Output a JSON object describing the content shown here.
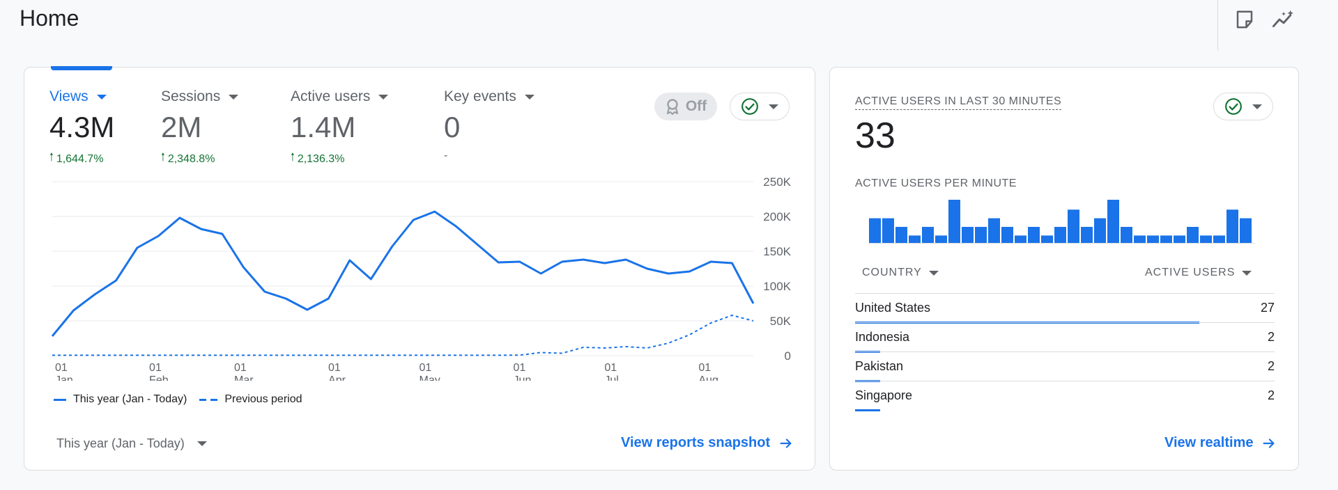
{
  "page": {
    "title": "Home"
  },
  "top_actions": [
    {
      "icon": "note-icon"
    },
    {
      "icon": "insights-sparkline-icon"
    }
  ],
  "main_card": {
    "metrics": [
      {
        "label": "Views",
        "value": "4.3M",
        "change": "1,644.7%",
        "direction": "up",
        "active": true
      },
      {
        "label": "Sessions",
        "value": "2M",
        "change": "2,348.8%",
        "direction": "up",
        "active": false
      },
      {
        "label": "Active users",
        "value": "1.4M",
        "change": "2,136.3%",
        "direction": "up",
        "active": false
      },
      {
        "label": "Key events",
        "value": "0",
        "change": "-",
        "direction": "none",
        "active": false
      }
    ],
    "toggle": {
      "label": "Off",
      "icon": "award-icon"
    },
    "status_icon": "check-circle-icon",
    "legend": {
      "current": "This year (Jan - Today)",
      "previous": "Previous period"
    },
    "date_range": "This year (Jan - Today)",
    "link_label": "View reports snapshot"
  },
  "chart_data": {
    "type": "line",
    "title": "",
    "xlabel": "",
    "ylabel": "",
    "ylim": [
      0,
      250000
    ],
    "y_ticks": [
      "250K",
      "200K",
      "150K",
      "100K",
      "50K",
      "0"
    ],
    "y_tick_values": [
      250000,
      200000,
      150000,
      100000,
      50000,
      0
    ],
    "x_ticks": [
      {
        "day": "01",
        "month": "Jan",
        "week": 0
      },
      {
        "day": "01",
        "month": "Feb",
        "week": 4.43
      },
      {
        "day": "01",
        "month": "Mar",
        "week": 8.43
      },
      {
        "day": "01",
        "month": "Apr",
        "week": 12.86
      },
      {
        "day": "01",
        "month": "May",
        "week": 17.14
      },
      {
        "day": "01",
        "month": "Jun",
        "week": 21.57
      },
      {
        "day": "01",
        "month": "Jul",
        "week": 25.86
      },
      {
        "day": "01",
        "month": "Aug",
        "week": 30.29
      }
    ],
    "grid": true,
    "legend_position": "bottom-left",
    "series": [
      {
        "name": "This year (Jan - Today)",
        "style": "solid",
        "color": "#1a73e8",
        "values": [
          28000,
          65000,
          88000,
          108000,
          155000,
          172000,
          198000,
          182000,
          175000,
          127000,
          92000,
          82000,
          66000,
          82000,
          137000,
          110000,
          157000,
          195000,
          207000,
          186000,
          160000,
          134000,
          135000,
          118000,
          135000,
          138000,
          133000,
          138000,
          125000,
          118000,
          121000,
          135000,
          133000,
          75000
        ]
      },
      {
        "name": "Previous period",
        "style": "dashed",
        "color": "#1a73e8",
        "values": [
          600,
          600,
          600,
          600,
          600,
          600,
          600,
          600,
          600,
          600,
          600,
          600,
          600,
          600,
          600,
          600,
          600,
          600,
          600,
          600,
          600,
          600,
          800,
          4500,
          3500,
          12000,
          11000,
          13000,
          11000,
          18000,
          30000,
          47000,
          58000,
          50000
        ]
      }
    ]
  },
  "side_card": {
    "title": "ACTIVE USERS IN LAST 30 MINUTES",
    "value": "33",
    "subtitle": "ACTIVE USERS PER MINUTE",
    "status_icon": "check-circle-icon",
    "per_minute": [
      2,
      2,
      1.3,
      0.6,
      1.3,
      0.6,
      3.5,
      1.3,
      1.3,
      2,
      1.3,
      0.6,
      1.3,
      0.6,
      1.3,
      2.7,
      1.3,
      2,
      3.5,
      1.3,
      0.6,
      0.6,
      0.6,
      0.6,
      1.3,
      0.6,
      0.6,
      2.7,
      2
    ],
    "columns": {
      "country": "COUNTRY",
      "users": "ACTIVE USERS"
    },
    "rows": [
      {
        "country": "United States",
        "users": "27",
        "share": 0.82
      },
      {
        "country": "Indonesia",
        "users": "2",
        "share": 0.06
      },
      {
        "country": "Pakistan",
        "users": "2",
        "share": 0.06
      },
      {
        "country": "Singapore",
        "users": "2",
        "share": 0.06
      }
    ],
    "link_label": "View realtime"
  }
}
